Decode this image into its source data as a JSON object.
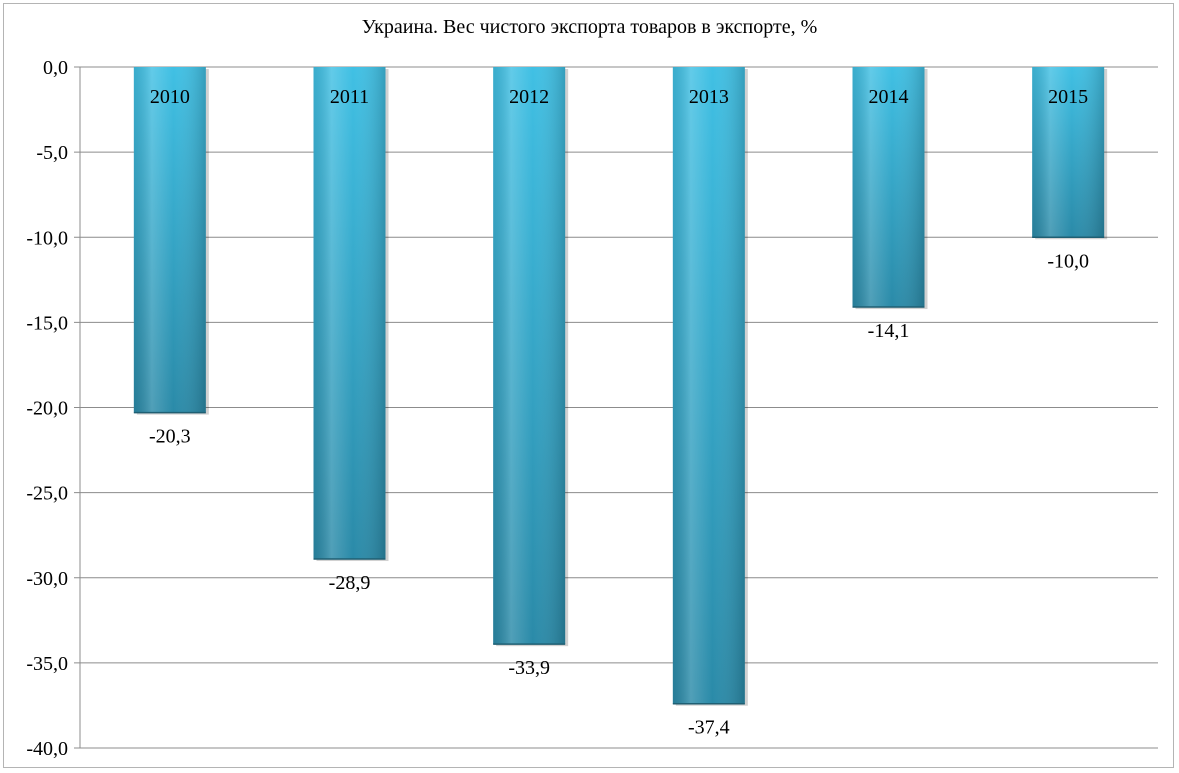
{
  "chart_data": {
    "type": "bar",
    "title": "Украина. Вес чистого экспорта товаров в экспорте, %",
    "categories": [
      "2010",
      "2011",
      "2012",
      "2013",
      "2014",
      "2015"
    ],
    "values": [
      -20.3,
      -28.9,
      -33.9,
      -37.4,
      -14.1,
      -10.0
    ],
    "value_labels": [
      "-20,3",
      "-28,9",
      "-33,9",
      "-37,4",
      "-14,1",
      "-10,0"
    ],
    "ylim": [
      -40,
      0
    ],
    "yticks": [
      0,
      -5,
      -10,
      -15,
      -20,
      -25,
      -30,
      -35,
      -40
    ],
    "ytick_labels": [
      "0,0",
      "-5,0",
      "-10,0",
      "-15,0",
      "-20,0",
      "-25,0",
      "-30,0",
      "-35,0",
      "-40,0"
    ],
    "grid": true,
    "legend": "none",
    "bar_color_light": "#40c0e4",
    "bar_color_dark": "#2a8aa8"
  }
}
